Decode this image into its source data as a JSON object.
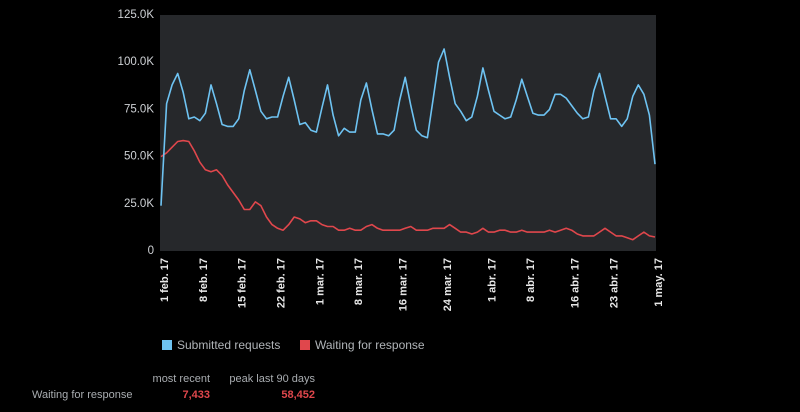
{
  "chart_data": {
    "type": "line",
    "categories": [
      "1 feb. 17",
      null,
      null,
      null,
      null,
      null,
      null,
      "8 feb. 17",
      null,
      null,
      null,
      null,
      null,
      null,
      "15 feb. 17",
      null,
      null,
      null,
      null,
      null,
      null,
      "22 feb. 17",
      null,
      null,
      null,
      null,
      null,
      null,
      "1 mar. 17",
      null,
      null,
      null,
      null,
      null,
      null,
      "8 mar. 17",
      null,
      null,
      null,
      null,
      null,
      null,
      null,
      "16 mar. 17",
      null,
      null,
      null,
      null,
      null,
      null,
      null,
      "24 mar. 17",
      null,
      null,
      null,
      null,
      null,
      null,
      null,
      "1 abr. 17",
      null,
      null,
      null,
      null,
      null,
      null,
      "8 abr. 17",
      null,
      null,
      null,
      null,
      null,
      null,
      null,
      "16 abr. 17",
      null,
      null,
      null,
      null,
      null,
      null,
      "23 abr. 17",
      null,
      null,
      null,
      null,
      null,
      null,
      null,
      "1 may. 17"
    ],
    "series": [
      {
        "name": "Submitted requests",
        "color": "#6ec3f2",
        "values": [
          24000,
          78000,
          88000,
          94000,
          84000,
          70000,
          71000,
          69000,
          73000,
          88000,
          78000,
          67000,
          66000,
          66000,
          70000,
          85000,
          96000,
          85000,
          74000,
          70000,
          71000,
          71000,
          82000,
          92000,
          80000,
          67000,
          68000,
          64000,
          63000,
          76000,
          88000,
          72000,
          61000,
          65000,
          63000,
          63000,
          80000,
          89000,
          75000,
          62000,
          62000,
          61000,
          64000,
          80000,
          92000,
          77000,
          64000,
          61000,
          60000,
          80000,
          100000,
          107000,
          92000,
          78000,
          74000,
          69000,
          71000,
          82000,
          97000,
          85000,
          74000,
          72000,
          70000,
          71000,
          80000,
          91000,
          82000,
          73000,
          72000,
          72000,
          75000,
          83000,
          83000,
          81000,
          77000,
          73000,
          70000,
          71000,
          85000,
          94000,
          82000,
          70000,
          70000,
          66000,
          70000,
          82000,
          88000,
          83000,
          72000,
          46000
        ]
      },
      {
        "name": "Waiting for response",
        "color": "#e0474c",
        "values": [
          50000,
          52000,
          55000,
          58000,
          58452,
          58000,
          53000,
          47000,
          43000,
          42000,
          43000,
          40000,
          35000,
          31000,
          27000,
          22000,
          22000,
          26000,
          24000,
          18000,
          14000,
          12000,
          11000,
          14000,
          18000,
          17000,
          15000,
          16000,
          16000,
          14000,
          13000,
          13000,
          11000,
          11000,
          12000,
          11000,
          11000,
          13000,
          14000,
          12000,
          11000,
          11000,
          11000,
          11000,
          12000,
          13000,
          11000,
          11000,
          11000,
          12000,
          12000,
          12000,
          14000,
          12000,
          10000,
          10000,
          9000,
          10000,
          12000,
          10000,
          10000,
          11000,
          11000,
          10000,
          10000,
          11000,
          10000,
          10000,
          10000,
          10000,
          11000,
          10000,
          11000,
          12000,
          11000,
          9000,
          8000,
          8000,
          8000,
          10000,
          12000,
          10000,
          8000,
          8000,
          7000,
          6000,
          8000,
          10000,
          8000,
          7433
        ]
      }
    ],
    "ylim": [
      0,
      125000
    ],
    "yticks": [
      0,
      {
        "value": 25000,
        "label": "25.0K"
      },
      {
        "value": 50000,
        "label": "50.0K"
      },
      {
        "value": 75000,
        "label": "75.0K"
      },
      {
        "value": 100000,
        "label": "100.0K"
      },
      {
        "value": 125000,
        "label": "125.0K"
      }
    ],
    "grid": false
  },
  "summary": {
    "headers": [
      "most recent",
      "peak last 90 days"
    ],
    "rows": [
      [
        "Waiting for response",
        "7,433",
        "58,452"
      ]
    ]
  }
}
